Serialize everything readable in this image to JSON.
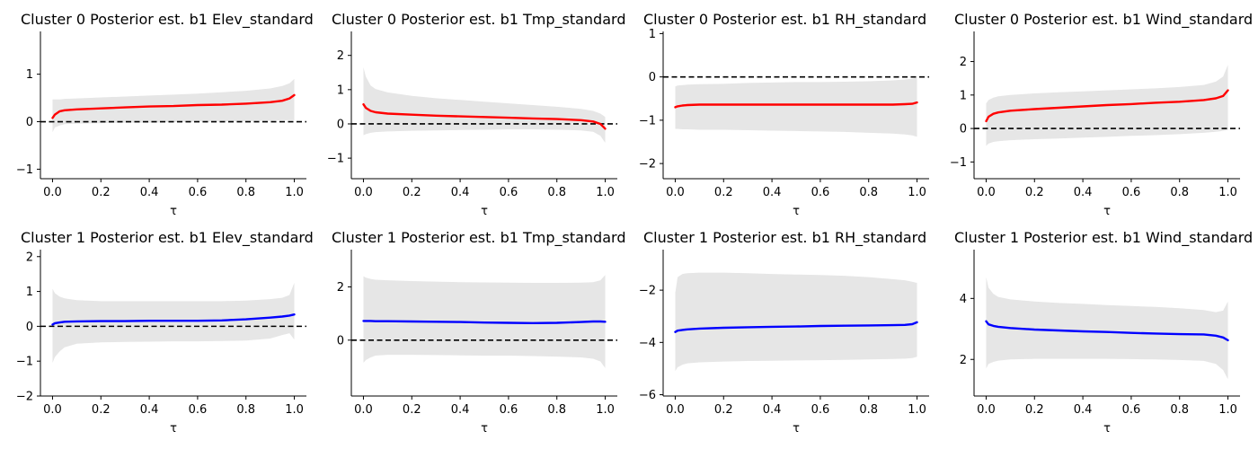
{
  "figure": {
    "background": "#ffffff",
    "band_color": "#e6e6e6",
    "zero_line_color": "#000000",
    "cluster_colors": {
      "cluster0": "#ff0000",
      "cluster1": "#0000ff"
    }
  },
  "chart_data": [
    {
      "type": "line",
      "title": "Cluster 0 Posterior est. b1 Elev_standard",
      "xlabel": "τ",
      "xlim": [
        -0.05,
        1.05
      ],
      "ylim": [
        -1.2,
        1.9
      ],
      "xticks": [
        0.0,
        0.2,
        0.4,
        0.6,
        0.8,
        1.0
      ],
      "xtick_labels": [
        "0.0",
        "0.2",
        "0.4",
        "0.6",
        "0.8",
        "1.0"
      ],
      "yticks": [
        -1,
        0,
        1
      ],
      "ytick_labels": [
        "−1",
        "0",
        "1"
      ],
      "zero_line": true,
      "series": [
        {
          "color": "#ff0000",
          "x": [
            0.0,
            0.01,
            0.03,
            0.05,
            0.1,
            0.2,
            0.3,
            0.4,
            0.5,
            0.6,
            0.7,
            0.8,
            0.9,
            0.95,
            0.98,
            1.0
          ],
          "y": [
            0.08,
            0.15,
            0.22,
            0.24,
            0.26,
            0.28,
            0.3,
            0.32,
            0.33,
            0.35,
            0.36,
            0.38,
            0.41,
            0.44,
            0.49,
            0.56
          ],
          "lower": [
            -0.22,
            -0.12,
            -0.08,
            -0.05,
            -0.04,
            -0.03,
            -0.02,
            -0.02,
            -0.01,
            0.0,
            0.0,
            0.01,
            0.02,
            0.03,
            0.03,
            0.03
          ],
          "upper": [
            0.47,
            0.47,
            0.47,
            0.48,
            0.49,
            0.51,
            0.53,
            0.55,
            0.57,
            0.59,
            0.62,
            0.65,
            0.7,
            0.75,
            0.81,
            0.9
          ]
        }
      ]
    },
    {
      "type": "line",
      "title": "Cluster 0 Posterior est. b1 Tmp_standard",
      "xlabel": "τ",
      "xlim": [
        -0.05,
        1.05
      ],
      "ylim": [
        -1.6,
        2.7
      ],
      "xticks": [
        0.0,
        0.2,
        0.4,
        0.6,
        0.8,
        1.0
      ],
      "xtick_labels": [
        "0.0",
        "0.2",
        "0.4",
        "0.6",
        "0.8",
        "1.0"
      ],
      "yticks": [
        -1,
        0,
        1,
        2
      ],
      "ytick_labels": [
        "−1",
        "0",
        "1",
        "2"
      ],
      "zero_line": true,
      "series": [
        {
          "color": "#ff0000",
          "x": [
            0.0,
            0.01,
            0.03,
            0.05,
            0.1,
            0.2,
            0.3,
            0.4,
            0.5,
            0.6,
            0.7,
            0.8,
            0.9,
            0.95,
            0.98,
            1.0
          ],
          "y": [
            0.57,
            0.47,
            0.38,
            0.34,
            0.3,
            0.27,
            0.24,
            0.22,
            0.2,
            0.18,
            0.16,
            0.14,
            0.11,
            0.07,
            0.0,
            -0.14
          ],
          "lower": [
            -0.33,
            -0.3,
            -0.26,
            -0.24,
            -0.22,
            -0.2,
            -0.19,
            -0.18,
            -0.17,
            -0.16,
            -0.16,
            -0.17,
            -0.19,
            -0.23,
            -0.35,
            -0.55
          ],
          "upper": [
            1.65,
            1.38,
            1.12,
            1.02,
            0.92,
            0.82,
            0.75,
            0.7,
            0.65,
            0.6,
            0.55,
            0.5,
            0.44,
            0.38,
            0.3,
            0.2
          ]
        }
      ]
    },
    {
      "type": "line",
      "title": "Cluster 0 Posterior est. b1 RH_standard",
      "xlabel": "τ",
      "xlim": [
        -0.05,
        1.05
      ],
      "ylim": [
        -2.35,
        1.05
      ],
      "xticks": [
        0.0,
        0.2,
        0.4,
        0.6,
        0.8,
        1.0
      ],
      "xtick_labels": [
        "0.0",
        "0.2",
        "0.4",
        "0.6",
        "0.8",
        "1.0"
      ],
      "yticks": [
        -2,
        -1,
        0,
        1
      ],
      "ytick_labels": [
        "−2",
        "−1",
        "0",
        "1"
      ],
      "zero_line": true,
      "series": [
        {
          "color": "#ff0000",
          "x": [
            0.0,
            0.01,
            0.03,
            0.05,
            0.1,
            0.2,
            0.3,
            0.4,
            0.5,
            0.6,
            0.7,
            0.8,
            0.9,
            0.95,
            0.98,
            1.0
          ],
          "y": [
            -0.7,
            -0.68,
            -0.66,
            -0.65,
            -0.64,
            -0.64,
            -0.64,
            -0.64,
            -0.64,
            -0.64,
            -0.64,
            -0.64,
            -0.64,
            -0.63,
            -0.62,
            -0.59
          ],
          "lower": [
            -1.2,
            -1.2,
            -1.21,
            -1.21,
            -1.22,
            -1.22,
            -1.23,
            -1.24,
            -1.25,
            -1.26,
            -1.27,
            -1.29,
            -1.31,
            -1.33,
            -1.35,
            -1.38
          ],
          "upper": [
            -0.22,
            -0.2,
            -0.19,
            -0.18,
            -0.17,
            -0.16,
            -0.14,
            -0.13,
            -0.12,
            -0.12,
            -0.11,
            -0.1,
            -0.08,
            -0.06,
            -0.04,
            -0.02
          ]
        }
      ]
    },
    {
      "type": "line",
      "title": "Cluster 0 Posterior est. b1 Wind_standard",
      "xlabel": "τ",
      "xlim": [
        -0.05,
        1.05
      ],
      "ylim": [
        -1.5,
        2.9
      ],
      "xticks": [
        0.0,
        0.2,
        0.4,
        0.6,
        0.8,
        1.0
      ],
      "xtick_labels": [
        "0.0",
        "0.2",
        "0.4",
        "0.6",
        "0.8",
        "1.0"
      ],
      "yticks": [
        -1,
        0,
        1,
        2
      ],
      "ytick_labels": [
        "−1",
        "0",
        "1",
        "2"
      ],
      "zero_line": true,
      "series": [
        {
          "color": "#ff0000",
          "x": [
            0.0,
            0.01,
            0.03,
            0.05,
            0.1,
            0.2,
            0.3,
            0.4,
            0.5,
            0.6,
            0.7,
            0.8,
            0.9,
            0.95,
            0.98,
            1.0
          ],
          "y": [
            0.22,
            0.35,
            0.44,
            0.48,
            0.53,
            0.58,
            0.62,
            0.66,
            0.7,
            0.73,
            0.77,
            0.8,
            0.85,
            0.9,
            0.97,
            1.14
          ],
          "lower": [
            -0.52,
            -0.45,
            -0.4,
            -0.38,
            -0.35,
            -0.32,
            -0.3,
            -0.27,
            -0.25,
            -0.22,
            -0.2,
            -0.17,
            -0.13,
            -0.1,
            -0.07,
            -0.05
          ],
          "upper": [
            0.75,
            0.85,
            0.92,
            0.96,
            1.0,
            1.05,
            1.08,
            1.11,
            1.14,
            1.17,
            1.2,
            1.24,
            1.3,
            1.4,
            1.55,
            1.9
          ]
        }
      ]
    },
    {
      "type": "line",
      "title": "Cluster 1 Posterior est. b1 Elev_standard",
      "xlabel": "τ",
      "xlim": [
        -0.05,
        1.05
      ],
      "ylim": [
        -2.0,
        2.2
      ],
      "xticks": [
        0.0,
        0.2,
        0.4,
        0.6,
        0.8,
        1.0
      ],
      "xtick_labels": [
        "0.0",
        "0.2",
        "0.4",
        "0.6",
        "0.8",
        "1.0"
      ],
      "yticks": [
        -2,
        -1,
        0,
        1,
        2
      ],
      "ytick_labels": [
        "−2",
        "−1",
        "0",
        "1",
        "2"
      ],
      "zero_line": true,
      "series": [
        {
          "color": "#0000ff",
          "x": [
            0.0,
            0.01,
            0.03,
            0.05,
            0.1,
            0.2,
            0.3,
            0.4,
            0.5,
            0.6,
            0.7,
            0.8,
            0.9,
            0.95,
            0.98,
            1.0
          ],
          "y": [
            0.05,
            0.09,
            0.11,
            0.13,
            0.14,
            0.15,
            0.15,
            0.16,
            0.16,
            0.16,
            0.17,
            0.2,
            0.25,
            0.28,
            0.31,
            0.34
          ],
          "lower": [
            -1.05,
            -0.88,
            -0.72,
            -0.6,
            -0.5,
            -0.46,
            -0.45,
            -0.44,
            -0.43,
            -0.43,
            -0.42,
            -0.41,
            -0.35,
            -0.25,
            -0.2,
            -0.38
          ],
          "upper": [
            1.08,
            0.95,
            0.85,
            0.8,
            0.75,
            0.72,
            0.72,
            0.72,
            0.72,
            0.72,
            0.72,
            0.74,
            0.78,
            0.82,
            0.9,
            1.25
          ]
        }
      ]
    },
    {
      "type": "line",
      "title": "Cluster 1 Posterior est. b1 Tmp_standard",
      "xlabel": "τ",
      "xlim": [
        -0.05,
        1.05
      ],
      "ylim": [
        -2.1,
        3.4
      ],
      "xticks": [
        0.0,
        0.2,
        0.4,
        0.6,
        0.8,
        1.0
      ],
      "xtick_labels": [
        "0.0",
        "0.2",
        "0.4",
        "0.6",
        "0.8",
        "1.0"
      ],
      "yticks": [
        0,
        2
      ],
      "ytick_labels": [
        "0",
        "2"
      ],
      "zero_line": true,
      "series": [
        {
          "color": "#0000ff",
          "x": [
            0.0,
            0.01,
            0.03,
            0.05,
            0.1,
            0.2,
            0.3,
            0.4,
            0.5,
            0.6,
            0.7,
            0.8,
            0.9,
            0.95,
            0.98,
            1.0
          ],
          "y": [
            0.72,
            0.72,
            0.72,
            0.71,
            0.71,
            0.7,
            0.69,
            0.68,
            0.66,
            0.65,
            0.64,
            0.65,
            0.68,
            0.7,
            0.7,
            0.69
          ],
          "lower": [
            -0.85,
            -0.75,
            -0.65,
            -0.58,
            -0.55,
            -0.55,
            -0.56,
            -0.57,
            -0.58,
            -0.58,
            -0.6,
            -0.62,
            -0.65,
            -0.7,
            -0.8,
            -1.05
          ],
          "upper": [
            2.4,
            2.35,
            2.3,
            2.27,
            2.25,
            2.22,
            2.2,
            2.18,
            2.17,
            2.16,
            2.15,
            2.15,
            2.16,
            2.18,
            2.25,
            2.45
          ]
        }
      ]
    },
    {
      "type": "line",
      "title": "Cluster 1 Posterior est. b1 RH_standard",
      "xlabel": "τ",
      "xlim": [
        -0.05,
        1.05
      ],
      "ylim": [
        -6.05,
        -0.45
      ],
      "xticks": [
        0.0,
        0.2,
        0.4,
        0.6,
        0.8,
        1.0
      ],
      "xtick_labels": [
        "0.0",
        "0.2",
        "0.4",
        "0.6",
        "0.8",
        "1.0"
      ],
      "yticks": [
        -6,
        -4,
        -2
      ],
      "ytick_labels": [
        "−6",
        "−4",
        "−2"
      ],
      "zero_line": false,
      "series": [
        {
          "color": "#0000ff",
          "x": [
            0.0,
            0.01,
            0.03,
            0.05,
            0.1,
            0.2,
            0.3,
            0.4,
            0.5,
            0.6,
            0.7,
            0.8,
            0.9,
            0.95,
            0.98,
            1.0
          ],
          "y": [
            -3.6,
            -3.55,
            -3.52,
            -3.5,
            -3.47,
            -3.44,
            -3.42,
            -3.4,
            -3.39,
            -3.37,
            -3.36,
            -3.35,
            -3.34,
            -3.33,
            -3.3,
            -3.23
          ],
          "lower": [
            -5.1,
            -4.95,
            -4.85,
            -4.8,
            -4.76,
            -4.73,
            -4.71,
            -4.7,
            -4.69,
            -4.68,
            -4.67,
            -4.65,
            -4.63,
            -4.62,
            -4.6,
            -4.55
          ],
          "upper": [
            -2.1,
            -1.5,
            -1.38,
            -1.35,
            -1.33,
            -1.33,
            -1.35,
            -1.38,
            -1.4,
            -1.42,
            -1.45,
            -1.5,
            -1.58,
            -1.62,
            -1.68,
            -1.72
          ]
        }
      ]
    },
    {
      "type": "line",
      "title": "Cluster 1 Posterior est. b1 Wind_standard",
      "xlabel": "τ",
      "xlim": [
        -0.05,
        1.05
      ],
      "ylim": [
        0.8,
        5.6
      ],
      "xticks": [
        0.0,
        0.2,
        0.4,
        0.6,
        0.8,
        1.0
      ],
      "xtick_labels": [
        "0.0",
        "0.2",
        "0.4",
        "0.6",
        "0.8",
        "1.0"
      ],
      "yticks": [
        2,
        4
      ],
      "ytick_labels": [
        "2",
        "4"
      ],
      "zero_line": false,
      "series": [
        {
          "color": "#0000ff",
          "x": [
            0.0,
            0.01,
            0.03,
            0.05,
            0.1,
            0.2,
            0.3,
            0.4,
            0.5,
            0.6,
            0.7,
            0.8,
            0.9,
            0.95,
            0.98,
            1.0
          ],
          "y": [
            3.25,
            3.15,
            3.1,
            3.07,
            3.03,
            2.98,
            2.95,
            2.92,
            2.9,
            2.87,
            2.85,
            2.83,
            2.82,
            2.78,
            2.72,
            2.63
          ],
          "lower": [
            1.7,
            1.85,
            1.92,
            1.96,
            2.0,
            2.02,
            2.02,
            2.02,
            2.02,
            2.01,
            2.0,
            1.98,
            1.95,
            1.85,
            1.65,
            1.35
          ],
          "upper": [
            4.7,
            4.35,
            4.15,
            4.05,
            3.97,
            3.9,
            3.85,
            3.82,
            3.78,
            3.75,
            3.72,
            3.68,
            3.62,
            3.55,
            3.6,
            3.9
          ]
        }
      ]
    }
  ]
}
